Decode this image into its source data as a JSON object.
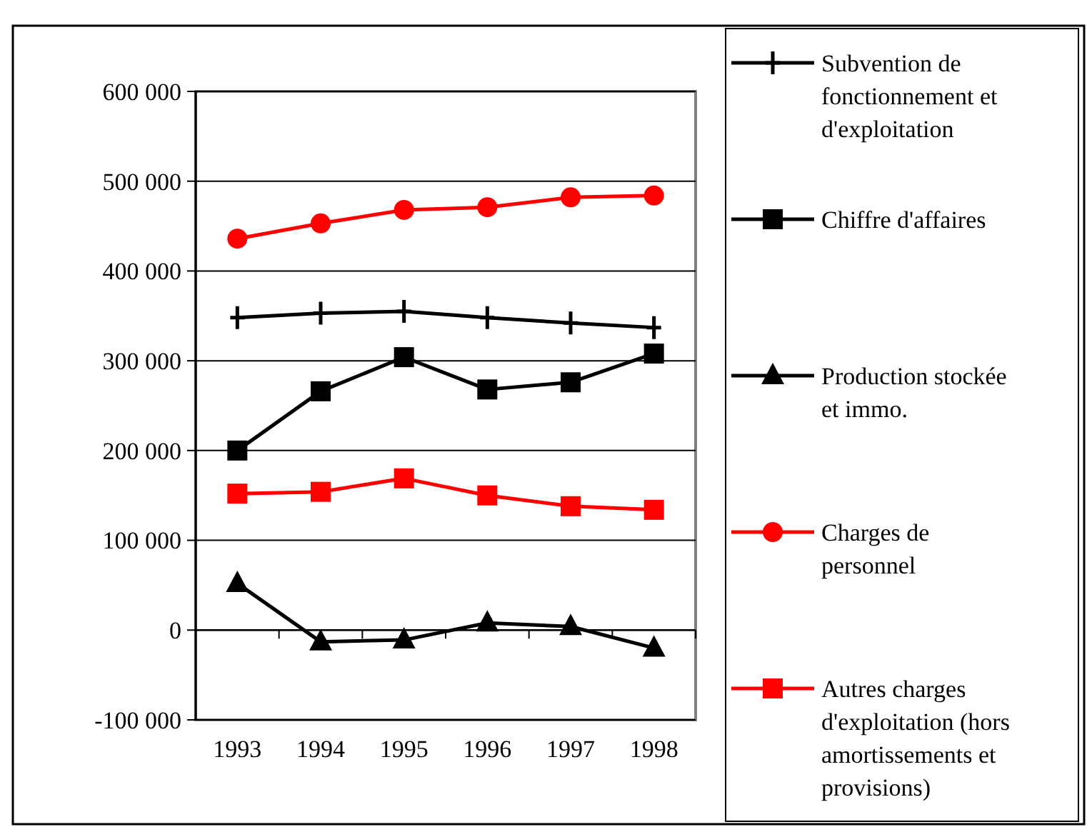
{
  "chart_data": {
    "type": "line",
    "categories": [
      "1993",
      "1994",
      "1995",
      "1996",
      "1997",
      "1998"
    ],
    "series": [
      {
        "name": "Subvention de fonctionnement et d'exploitation",
        "color": "#000000",
        "marker": "cross",
        "values": [
          348000,
          353000,
          355000,
          348000,
          342000,
          337000
        ]
      },
      {
        "name": "Chiffre d'affaires",
        "color": "#000000",
        "marker": "square",
        "values": [
          200000,
          266000,
          304000,
          268000,
          276000,
          308000
        ]
      },
      {
        "name": "Production stockée et immo.",
        "color": "#000000",
        "marker": "triangle",
        "values": [
          52000,
          -13000,
          -11000,
          8000,
          4000,
          -20000
        ]
      },
      {
        "name": "Charges de personnel",
        "color": "#ff0000",
        "marker": "circle",
        "values": [
          436000,
          453000,
          468000,
          471000,
          482000,
          484000
        ]
      },
      {
        "name": "Autres charges d'exploitation (hors amortissements et provisions)",
        "color": "#ff0000",
        "marker": "square",
        "values": [
          152000,
          154000,
          169000,
          150000,
          138000,
          134000
        ]
      }
    ],
    "ylim": [
      -100000,
      600000
    ],
    "yticks": [
      {
        "value": -100000,
        "label": "-100 000"
      },
      {
        "value": 0,
        "label": "0"
      },
      {
        "value": 100000,
        "label": "100 000"
      },
      {
        "value": 200000,
        "label": "200 000"
      },
      {
        "value": 300000,
        "label": "300 000"
      },
      {
        "value": 400000,
        "label": "400 000"
      },
      {
        "value": 500000,
        "label": "500 000"
      },
      {
        "value": 600000,
        "label": "600 000"
      }
    ],
    "grid": "y",
    "legend": "right"
  }
}
